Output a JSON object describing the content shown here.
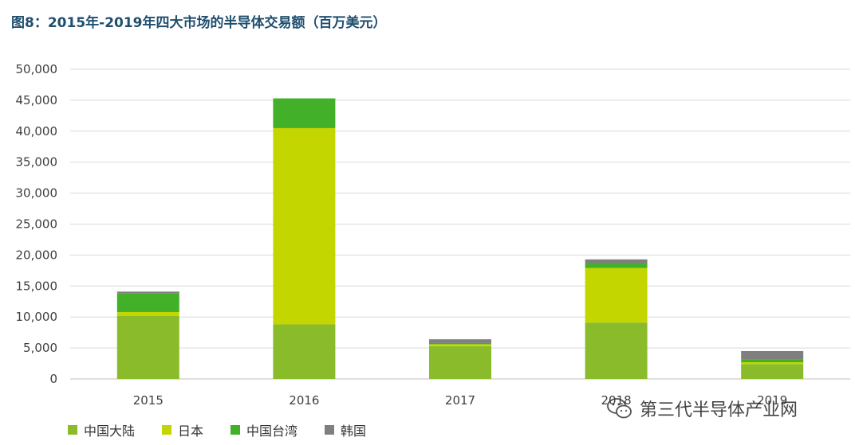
{
  "title": "图8：2015年-2019年四大市场的半导体交易额（百万美元）",
  "colors": {
    "中国大陆": "#8abb2a",
    "日本": "#c4d600",
    "中国台湾": "#43b02a",
    "韩国": "#7f7f7f"
  },
  "legend": [
    {
      "label": "中国大陆",
      "color": "#8abb2a"
    },
    {
      "label": "日本",
      "color": "#c4d600"
    },
    {
      "label": "中国台湾",
      "color": "#43b02a"
    },
    {
      "label": "韩国",
      "color": "#7f7f7f"
    }
  ],
  "watermark": {
    "text": "第三代半导体产业网",
    "icon": "wechat-icon"
  },
  "chart_data": {
    "type": "bar",
    "stacked": true,
    "title": "图8：2015年-2019年四大市场的半导体交易额（百万美元）",
    "categories": [
      "2015",
      "2016",
      "2017",
      "2018",
      "2019"
    ],
    "series": [
      {
        "name": "中国大陆",
        "values": [
          10200,
          8800,
          5300,
          9100,
          2400
        ]
      },
      {
        "name": "日本",
        "values": [
          600,
          31700,
          300,
          8800,
          300
        ]
      },
      {
        "name": "中国台湾",
        "values": [
          3000,
          4800,
          200,
          800,
          500
        ]
      },
      {
        "name": "韩国",
        "values": [
          300,
          0,
          600,
          600,
          1300
        ]
      }
    ],
    "ylim": [
      0,
      50000
    ],
    "yticks": [
      0,
      5000,
      10000,
      15000,
      20000,
      25000,
      30000,
      35000,
      40000,
      45000,
      50000
    ],
    "ytick_labels": [
      "0",
      "5,000",
      "10,000",
      "15,000",
      "20,000",
      "25,000",
      "30,000",
      "35,000",
      "40,000",
      "45,000",
      "50,000"
    ],
    "grid": true,
    "legend_position": "bottom"
  }
}
